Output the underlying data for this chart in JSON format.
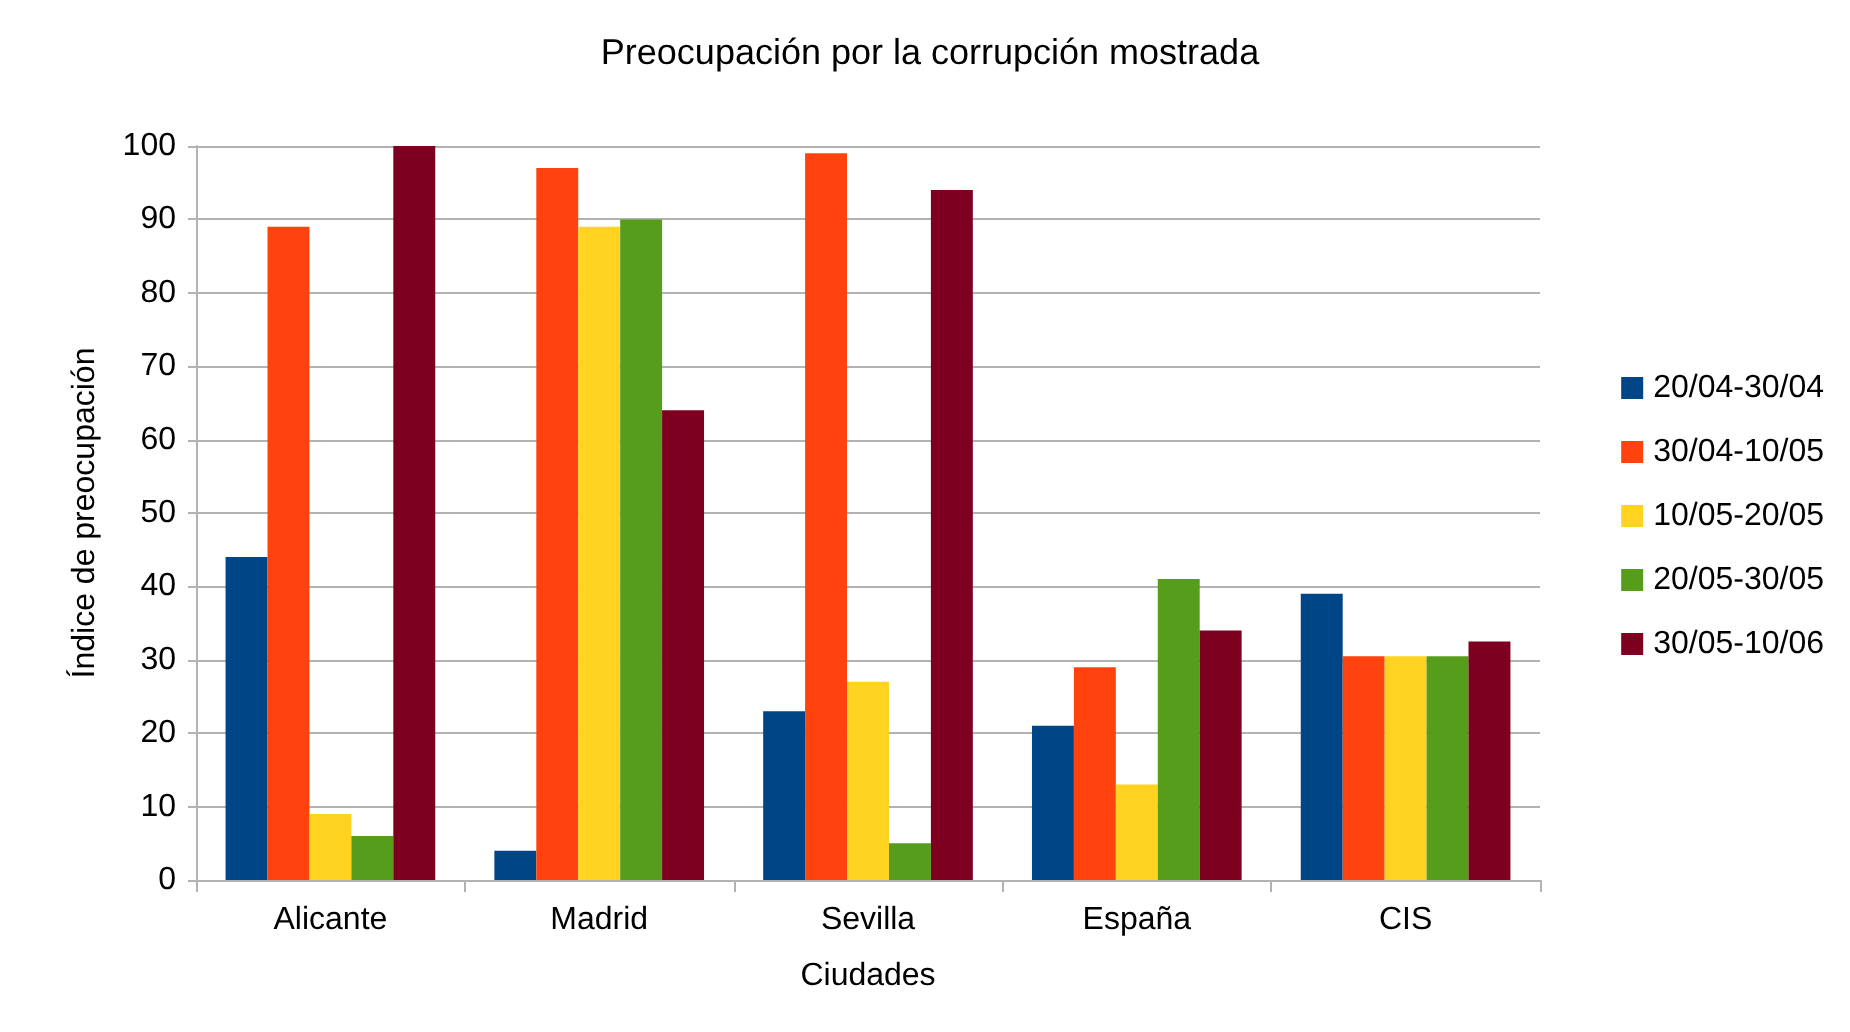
{
  "chart_data": {
    "type": "bar",
    "title": "Preocupación por la corrupción mostrada",
    "xlabel": "Ciudades",
    "ylabel": "Índice de preocupación",
    "categories": [
      "Alicante",
      "Madrid",
      "Sevilla",
      "España",
      "CIS"
    ],
    "series": [
      {
        "name": "20/04-30/04",
        "color": "#004586",
        "values": [
          44,
          4,
          23,
          21,
          39
        ]
      },
      {
        "name": "30/04-10/05",
        "color": "#ff420e",
        "values": [
          89,
          97,
          99,
          29,
          30.5
        ]
      },
      {
        "name": "10/05-20/05",
        "color": "#ffd320",
        "values": [
          9,
          89,
          27,
          13,
          30.5
        ]
      },
      {
        "name": "20/05-30/05",
        "color": "#579d1c",
        "values": [
          6,
          90,
          5,
          41,
          30.5
        ]
      },
      {
        "name": "30/05-10/06",
        "color": "#7e0021",
        "values": [
          100,
          64,
          94,
          34,
          32.5
        ]
      }
    ],
    "ylim": [
      0,
      100
    ],
    "yticks": [
      0,
      10,
      20,
      30,
      40,
      50,
      60,
      70,
      80,
      90,
      100
    ],
    "grid": "y",
    "legend": "right"
  }
}
